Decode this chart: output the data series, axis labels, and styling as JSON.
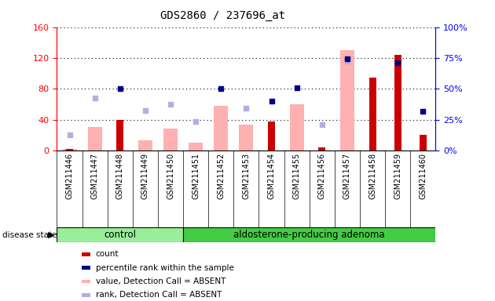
{
  "title": "GDS2860 / 237696_at",
  "samples": [
    "GSM211446",
    "GSM211447",
    "GSM211448",
    "GSM211449",
    "GSM211450",
    "GSM211451",
    "GSM211452",
    "GSM211453",
    "GSM211454",
    "GSM211455",
    "GSM211456",
    "GSM211457",
    "GSM211458",
    "GSM211459",
    "GSM211460"
  ],
  "count": [
    2,
    0,
    40,
    0,
    0,
    0,
    0,
    0,
    38,
    0,
    4,
    0,
    95,
    124,
    20
  ],
  "percentile_rank_right": [
    null,
    null,
    50,
    null,
    null,
    null,
    50,
    null,
    40,
    51,
    null,
    74,
    null,
    71,
    32
  ],
  "value_absent": [
    2,
    30,
    null,
    13,
    28,
    10,
    58,
    34,
    null,
    60,
    null,
    130,
    null,
    null,
    null
  ],
  "rank_absent": [
    20,
    68,
    null,
    52,
    60,
    38,
    null,
    55,
    null,
    null,
    34,
    116,
    null,
    null,
    null
  ],
  "n_control": 5,
  "n_adenoma": 10,
  "ylim_left": [
    0,
    160
  ],
  "ylim_right": [
    0,
    100
  ],
  "yticks_left": [
    0,
    40,
    80,
    120,
    160
  ],
  "ytick_labels_left": [
    "0",
    "40",
    "80",
    "120",
    "160"
  ],
  "yticks_right": [
    0,
    25,
    50,
    75,
    100
  ],
  "ytick_labels_right": [
    "0%",
    "25%",
    "50%",
    "75%",
    "100%"
  ],
  "bar_color_count": "#cc0000",
  "bar_color_value_absent": "#ffb0b0",
  "dot_color_percentile": "#00008b",
  "dot_color_rank_absent": "#b0b0e0",
  "control_bg_light": "#99ee99",
  "adenoma_bg": "#44cc44",
  "xtick_bg": "#cccccc",
  "legend_items": [
    {
      "label": "count",
      "color": "#cc0000"
    },
    {
      "label": "percentile rank within the sample",
      "color": "#00008b"
    },
    {
      "label": "value, Detection Call = ABSENT",
      "color": "#ffb0b0"
    },
    {
      "label": "rank, Detection Call = ABSENT",
      "color": "#b0b0e0"
    }
  ]
}
